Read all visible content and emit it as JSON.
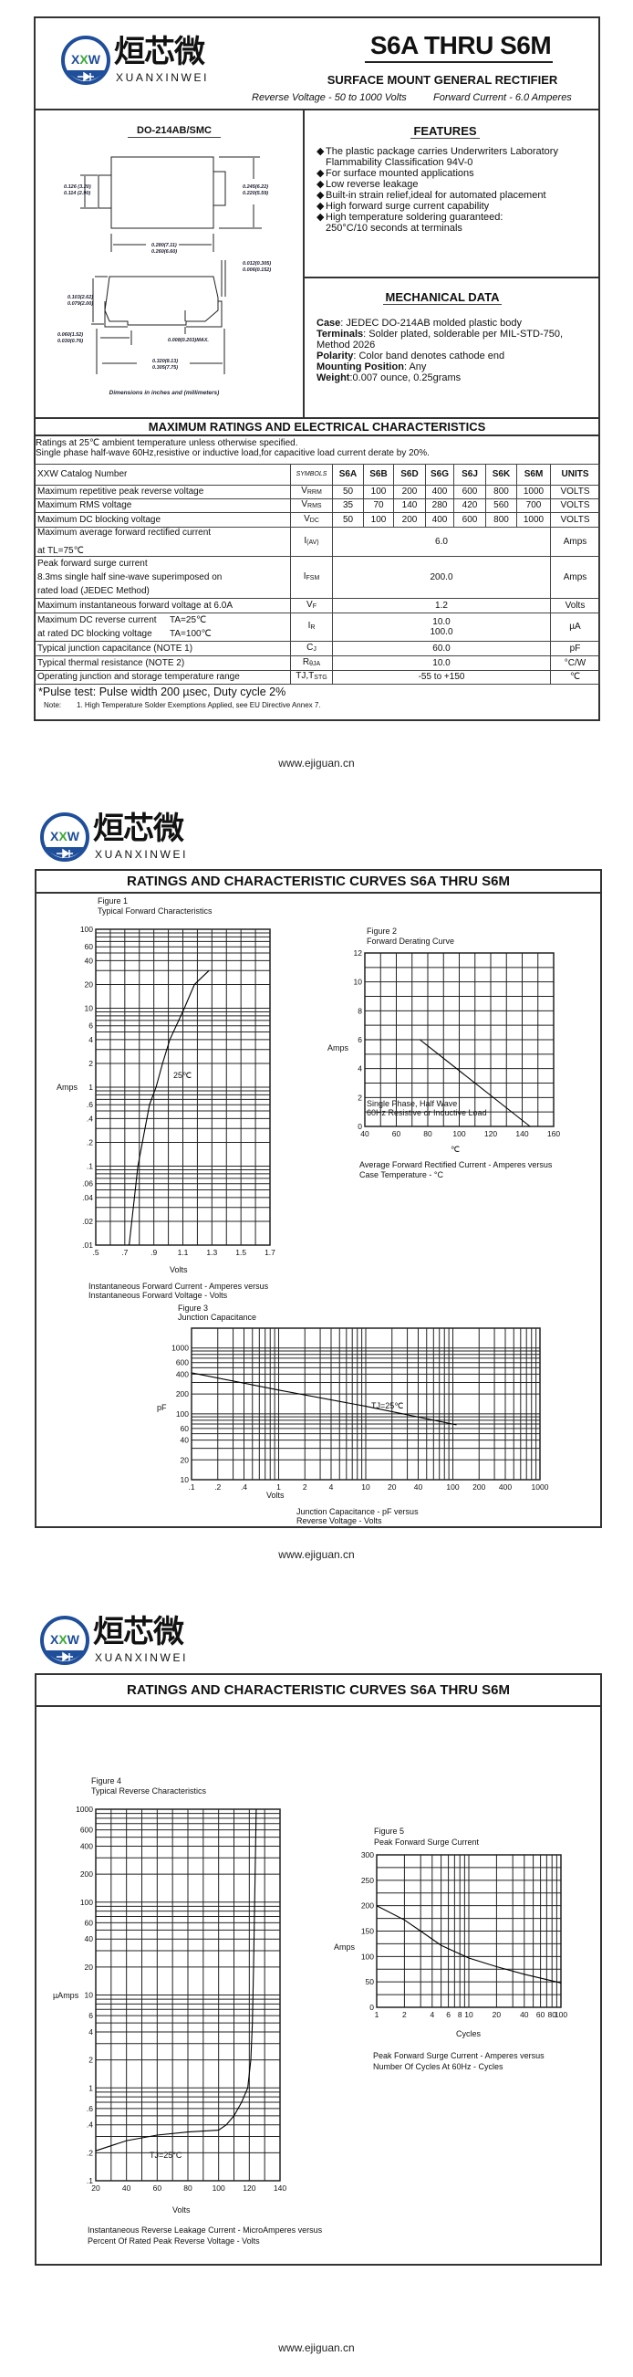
{
  "logo": {
    "mark": "XXW",
    "cn": "烜芯微",
    "en": "XUANXINWEI",
    "brand_color": "#1f4e9a",
    "accent_color": "#3aa935"
  },
  "header": {
    "title": "S6A THRU S6M",
    "subtitle": "SURFACE MOUNT GENERAL RECTIFIER",
    "specs_voltage": "Reverse Voltage - 50 to 1000 Volts",
    "specs_current": "Forward Current - 6.0 Amperes"
  },
  "package": {
    "name": "DO-214AB/SMC",
    "dims": {
      "d1": [
        "0.126 (3.20)",
        "0.114 (2.90)"
      ],
      "d2": [
        "0.245(6.22)",
        "0.220(5.59)"
      ],
      "d3": [
        "0.280(7.11)",
        "0.260(6.60)"
      ],
      "d4": [
        "0.012(0.305)",
        "0.006(0.152)"
      ],
      "d5": [
        "0.103(2.62)",
        "0.079(2.00)"
      ],
      "d6": [
        "0.060(1.52)",
        "0.030(0.76)"
      ],
      "d7": "0.008(0.203)MAX.",
      "d8": [
        "0.320(8.13)",
        "0.305(7.75)"
      ]
    },
    "note": "Dimensions in inches and (millimeters)"
  },
  "features": {
    "title": "FEATURES",
    "items": [
      [
        "The plastic package carries Underwriters Laboratory",
        "Flammability Classification 94V-0"
      ],
      [
        "For surface mounted applications"
      ],
      [
        "Low reverse leakage"
      ],
      [
        "Built-in strain relief,ideal for automated placement"
      ],
      [
        "High forward surge current capability"
      ],
      [
        "High temperature soldering guaranteed:",
        "250°C/10 seconds at terminals"
      ]
    ]
  },
  "mechanical": {
    "title": "MECHANICAL DATA",
    "lines": [
      {
        "label": "Case",
        "text": ": JEDEC DO-214AB molded plastic body"
      },
      {
        "label": "Terminals",
        "text": ": Solder plated, solderable per MIL-STD-750,"
      },
      {
        "label": "",
        "text": "Method 2026"
      },
      {
        "label": "Polarity",
        "text": ": Color band denotes cathode end"
      },
      {
        "label": "Mounting Position",
        "text": ": Any"
      },
      {
        "label": "Weight",
        "text": ":0.007 ounce, 0.25grams"
      }
    ]
  },
  "ratings": {
    "title": "MAXIMUM RATINGS AND ELECTRICAL CHARACTERISTICS",
    "notes": [
      "Ratings at 25℃ ambient temperature unless otherwise specified.",
      "Single phase half-wave 60Hz,resistive or inductive load,for capacitive load current derate by 20%."
    ],
    "columns": {
      "catalog": "XXW Catalog  Number",
      "symbols": "SYMBOLS",
      "parts": [
        "S6A",
        "S6B",
        "S6D",
        "S6G",
        "S6J",
        "S6K",
        "S6M"
      ],
      "units": "UNITS"
    },
    "rows": [
      {
        "param": [
          "Maximum repetitive peak reverse voltage"
        ],
        "sym": "V",
        "sub": "RRM",
        "values": [
          "50",
          "100",
          "200",
          "400",
          "600",
          "800",
          "1000"
        ],
        "unit": "VOLTS"
      },
      {
        "param": [
          "Maximum RMS voltage"
        ],
        "sym": "V",
        "sub": "RMS",
        "values": [
          "35",
          "70",
          "140",
          "280",
          "420",
          "560",
          "700"
        ],
        "unit": "VOLTS"
      },
      {
        "param": [
          "Maximum DC blocking voltage"
        ],
        "sym": "V",
        "sub": "DC",
        "values": [
          "50",
          "100",
          "200",
          "400",
          "600",
          "800",
          "1000"
        ],
        "unit": "VOLTS"
      },
      {
        "param": [
          "Maximum average forward rectified current",
          "at TL=75℃"
        ],
        "sym": "I",
        "sub": "(AV)",
        "value": "6.0",
        "unit": "Amps"
      },
      {
        "param": [
          "Peak forward surge current",
          "8.3ms single half sine-wave superimposed on",
          "rated load (JEDEC Method)"
        ],
        "sym": "I",
        "sub": "FSM",
        "value": "200.0",
        "unit": "Amps"
      },
      {
        "param": [
          "Maximum instantaneous forward voltage at 6.0A"
        ],
        "sym": "V",
        "sub": "F",
        "value": "1.2",
        "unit": "Volts"
      },
      {
        "param": [
          "Maximum DC reverse current",
          "at rated DC blocking voltage"
        ],
        "cond": [
          "TA=25℃",
          "TA=100℃"
        ],
        "sym": "I",
        "sub": "R",
        "value_lines": [
          "10.0",
          "100.0"
        ],
        "unit": "µA"
      },
      {
        "param": [
          "Typical junction capacitance (NOTE 1)"
        ],
        "sym": "C",
        "sub": "J",
        "value": "60.0",
        "unit": "pF"
      },
      {
        "param": [
          "Typical thermal resistance (NOTE 2)"
        ],
        "sym": "R",
        "sub": "θJA",
        "value": "10.0",
        "unit": "°C/W"
      },
      {
        "param": [
          "Operating junction and storage temperature range"
        ],
        "sym": "TJ,T",
        "sub": "STG",
        "value": "-55 to +150",
        "unit": "℃"
      }
    ],
    "pulse_note": "*Pulse test: Pulse width 200 µsec, Duty cycle 2%",
    "footnote_label": "Note:",
    "footnote": "1.  High Temperature Solder Exemptions Applied, see EU Directive Annex 7."
  },
  "footer_url": "www.ejiguan.cn",
  "curves_title": "RATINGS AND CHARACTERISTIC CURVES S6A THRU S6M",
  "chart_data": [
    {
      "type": "line",
      "figure": "Figure 1",
      "title": "Typical Forward Characteristics",
      "xlabel": "Volts",
      "ylabel": "Amps",
      "xscale": "linear",
      "yscale": "log",
      "xlim": [
        0.5,
        1.7
      ],
      "ylim": [
        0.01,
        100
      ],
      "grid": true,
      "xticks": [
        0.5,
        0.7,
        0.9,
        1.1,
        1.3,
        1.5,
        1.7
      ],
      "xtick_labels": [
        ".5",
        ".7",
        ".9",
        "1.1",
        "1.3",
        "1.5",
        "1.7"
      ],
      "yticks": [
        100,
        60,
        40,
        20,
        10,
        6,
        4,
        2,
        1,
        0.6,
        0.4,
        0.2,
        0.1,
        0.06,
        0.04,
        0.02,
        0.01
      ],
      "ytick_labels": [
        "100",
        "60",
        "40",
        "20",
        "10",
        "6",
        "4",
        "2",
        "1",
        ".6",
        ".4",
        ".2",
        ".1",
        ".06",
        ".04",
        ".02",
        ".01"
      ],
      "annotation": "25℃",
      "caption": [
        "Instantaneous Forward Current - Amperes versus",
        "Instantaneous Forward Voltage - Volts"
      ],
      "series": [
        {
          "points": [
            [
              0.73,
              0.01
            ],
            [
              0.79,
              0.1
            ],
            [
              0.87,
              0.6
            ],
            [
              0.915,
              1
            ],
            [
              0.96,
              2
            ],
            [
              1.01,
              4
            ],
            [
              1.11,
              10
            ],
            [
              1.18,
              20
            ],
            [
              1.28,
              30
            ]
          ]
        }
      ]
    },
    {
      "type": "line",
      "figure": "Figure 2",
      "title": "Forward Derating Curve",
      "xlabel": "℃",
      "ylabel": "Amps",
      "xscale": "linear",
      "yscale": "linear",
      "xlim": [
        40,
        160
      ],
      "ylim": [
        0,
        12
      ],
      "grid": true,
      "xticks": [
        40,
        60,
        80,
        100,
        120,
        140,
        160
      ],
      "xtick_labels": [
        "40",
        "60",
        "80",
        "100",
        "120",
        "140",
        "160"
      ],
      "yticks": [
        0,
        2,
        4,
        6,
        8,
        10,
        12
      ],
      "ytick_labels": [
        "0",
        "2",
        "4",
        "6",
        "8",
        "10",
        "12"
      ],
      "annotation_lines": [
        "Single Phase, Half Wave",
        "60Hz Resistive or Inductive Load"
      ],
      "caption": [
        "Average Forward Rectified Current  -  Amperes versus",
        "Case Temperature  - °C"
      ],
      "series": [
        {
          "points": [
            [
              40,
              6
            ],
            [
              75,
              6
            ],
            [
              145,
              0
            ]
          ]
        }
      ]
    },
    {
      "type": "line",
      "figure": "Figure 3",
      "title": "Junction Capacitance",
      "xlabel": "Volts",
      "ylabel": "pF",
      "xscale": "log",
      "yscale": "log",
      "xlim": [
        0.1,
        1000
      ],
      "ylim": [
        10,
        2000
      ],
      "grid": true,
      "xticks": [
        0.1,
        0.2,
        0.4,
        1,
        2,
        4,
        10,
        20,
        40,
        100,
        200,
        400,
        1000
      ],
      "xtick_labels": [
        ".1",
        ".2",
        ".4",
        "1",
        "2",
        "4",
        "10",
        "20",
        "40",
        "100",
        "200",
        "400",
        "1000"
      ],
      "yticks": [
        1000,
        600,
        400,
        200,
        100,
        60,
        40,
        20,
        10
      ],
      "ytick_labels": [
        "1000",
        "600",
        "400",
        "200",
        "100",
        "60",
        "40",
        "20",
        "10"
      ],
      "annotation": "TJ=25℃",
      "caption": [
        "Junction Capacitance - pF versus",
        "Reverse Voltage - Volts"
      ],
      "series": [
        {
          "points": [
            [
              0.1,
              420
            ],
            [
              1,
              230
            ],
            [
              10,
              130
            ],
            [
              110,
              68
            ]
          ]
        }
      ]
    },
    {
      "type": "line",
      "figure": "Figure 4",
      "title": "Typical Reverse Characteristics",
      "xlabel": "Volts",
      "ylabel": "µAmps",
      "xscale": "linear",
      "yscale": "log",
      "xlim": [
        20,
        140
      ],
      "ylim": [
        0.1,
        1000
      ],
      "grid": true,
      "xticks": [
        20,
        40,
        60,
        80,
        100,
        120,
        140
      ],
      "xtick_labels": [
        "20",
        "40",
        "60",
        "80",
        "100",
        "120",
        "140"
      ],
      "yticks": [
        1000,
        600,
        400,
        200,
        100,
        60,
        40,
        20,
        10,
        6,
        4,
        2,
        1,
        0.6,
        0.4,
        0.2,
        0.1
      ],
      "ytick_labels": [
        "1000",
        "600",
        "400",
        "200",
        "100",
        "60",
        "40",
        "20",
        "10",
        "6",
        "4",
        "2",
        "1",
        ".6",
        ".4",
        ".2",
        ".1"
      ],
      "annotation": "TJ=25°C",
      "caption": [
        "Instantaneous Reverse Leakage Current - MicroAmperes versus",
        "Percent Of Rated Peak Reverse Voltage - Volts"
      ],
      "series": [
        {
          "points": [
            [
              20,
              0.21
            ],
            [
              40,
              0.27
            ],
            [
              60,
              0.31
            ],
            [
              80,
              0.335
            ],
            [
              100,
              0.35
            ],
            [
              105,
              0.4
            ],
            [
              110,
              0.5
            ],
            [
              115,
              0.7
            ],
            [
              119,
              1
            ],
            [
              121,
              2
            ],
            [
              122,
              5
            ],
            [
              122.8,
              20
            ],
            [
              123.5,
              100
            ],
            [
              124.5,
              1000
            ]
          ]
        }
      ]
    },
    {
      "type": "line",
      "figure": "Figure 5",
      "title": "Peak Forward Surge Current",
      "xlabel": "Cycles",
      "ylabel": "Amps",
      "xscale": "log",
      "yscale": "linear",
      "xlim": [
        1,
        100
      ],
      "ylim": [
        0,
        300
      ],
      "grid": true,
      "xticks": [
        1,
        2,
        4,
        6,
        8,
        10,
        20,
        40,
        60,
        80,
        100
      ],
      "xtick_labels": [
        "1",
        "2",
        "4",
        "6",
        "8",
        "10",
        "20",
        "40",
        "60",
        "80",
        "100"
      ],
      "yticks": [
        0,
        50,
        100,
        150,
        200,
        250,
        300
      ],
      "ytick_labels": [
        "0",
        "50",
        "100",
        "150",
        "200",
        "250",
        "300"
      ],
      "caption": [
        "Peak Forward Surge Current - Amperes versus",
        "Number Of Cycles At 60Hz - Cycles"
      ],
      "series": [
        {
          "points": [
            [
              1,
              200
            ],
            [
              2,
              172
            ],
            [
              3,
              150
            ],
            [
              5,
              122
            ],
            [
              10,
              97
            ],
            [
              20,
              80
            ],
            [
              40,
              65
            ],
            [
              100,
              48
            ]
          ]
        }
      ]
    }
  ]
}
